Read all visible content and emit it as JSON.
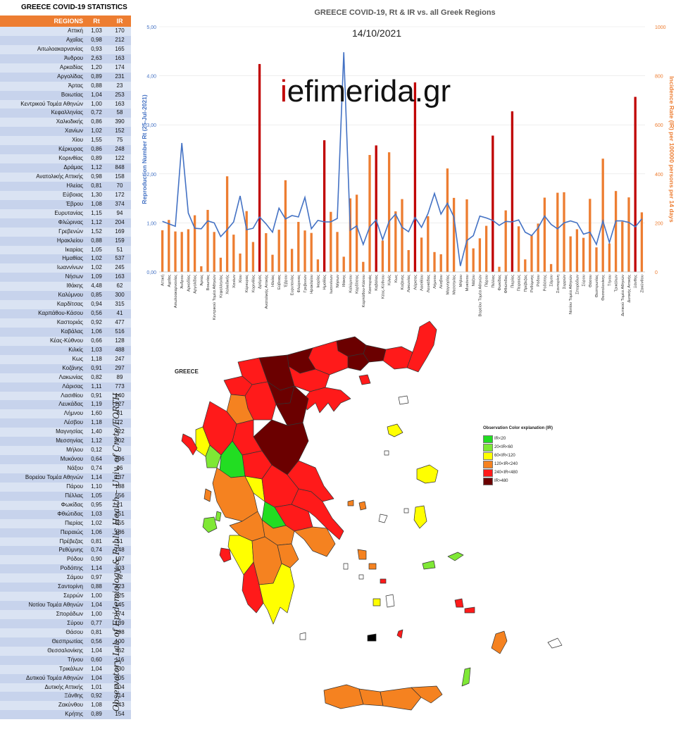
{
  "stats_table": {
    "title": "GREECE COVID-19 STATISTICS",
    "headers": [
      "REGIONS",
      "Rt",
      "IR"
    ],
    "rows": [
      [
        "Αττική",
        "1,03",
        "170"
      ],
      [
        "Αχαΐας",
        "0,98",
        "212"
      ],
      [
        "Αιτωλοακαρνανίας",
        "0,93",
        "165"
      ],
      [
        "Άνδρου",
        "2,63",
        "163"
      ],
      [
        "Αρκαδίας",
        "1,20",
        "174"
      ],
      [
        "Αργολίδας",
        "0,89",
        "231"
      ],
      [
        "Άρτας",
        "0,88",
        "23"
      ],
      [
        "Βοιωτίας",
        "1,04",
        "253"
      ],
      [
        "Κεντρικού Τομέα Αθηνών",
        "1,00",
        "163"
      ],
      [
        "Κεφαλληνίας",
        "0,72",
        "58"
      ],
      [
        "Χαλκιδικής",
        "0,86",
        "390"
      ],
      [
        "Χανίων",
        "1,02",
        "152"
      ],
      [
        "Χίου",
        "1,55",
        "75"
      ],
      [
        "Κέρκυρας",
        "0,86",
        "248"
      ],
      [
        "Κορινθίας",
        "0,89",
        "122"
      ],
      [
        "Δράμας",
        "1,12",
        "848"
      ],
      [
        "Ανατολικής Αττικής",
        "0,98",
        "158"
      ],
      [
        "Ηλείας",
        "0,81",
        "70"
      ],
      [
        "Εύβοιας",
        "1,30",
        "172"
      ],
      [
        "Έβρου",
        "1,08",
        "374"
      ],
      [
        "Ευρυτανίας",
        "1,15",
        "94"
      ],
      [
        "Φλώρινας",
        "1,12",
        "204"
      ],
      [
        "Γρεβενών",
        "1,52",
        "169"
      ],
      [
        "Ηρακλείου",
        "0,88",
        "159"
      ],
      [
        "Ικαρίας",
        "1,05",
        "51"
      ],
      [
        "Ημαθίας",
        "1,02",
        "537"
      ],
      [
        "Ιωαννίνων",
        "1,02",
        "245"
      ],
      [
        "Νήσων",
        "1,09",
        "163"
      ],
      [
        "Ιθάκης",
        "4,48",
        "62"
      ],
      [
        "Καλύμνου",
        "0,85",
        "300"
      ],
      [
        "Καρδίτσας",
        "0,94",
        "315"
      ],
      [
        "Καρπάθου-Κάσου",
        "0,56",
        "41"
      ],
      [
        "Καστοριάς",
        "0,92",
        "477"
      ],
      [
        "Καβάλας",
        "1,06",
        "516"
      ],
      [
        "Κέας-Κύθνου",
        "0,66",
        "128"
      ],
      [
        "Κιλκίς",
        "1,03",
        "488"
      ],
      [
        "Κως",
        "1,18",
        "247"
      ],
      [
        "Κοζάνης",
        "0,91",
        "297"
      ],
      [
        "Λακωνίας",
        "0,82",
        "89"
      ],
      [
        "Λάρισας",
        "1,11",
        "773"
      ],
      [
        "Λασιθίου",
        "0,91",
        "140"
      ],
      [
        "Λευκάδας",
        "1,19",
        "227"
      ],
      [
        "Λήμνου",
        "1,60",
        "81"
      ],
      [
        "Λέσβου",
        "1,18",
        "72"
      ],
      [
        "Μαγνησίας",
        "1,40",
        "422"
      ],
      [
        "Μεσσηνίας",
        "1,12",
        "302"
      ],
      [
        "Μήλου",
        "0,12",
        "0"
      ],
      [
        "Μυκόνου",
        "0,64",
        "296"
      ],
      [
        "Νάξου",
        "0,74",
        "96"
      ],
      [
        "Βορείου Τομέα Αθηνών",
        "1,14",
        "137"
      ],
      [
        "Πάρου",
        "1,10",
        "188"
      ],
      [
        "Πέλλας",
        "1,05",
        "556"
      ],
      [
        "Φωκίδας",
        "0,95",
        "21"
      ],
      [
        "Φθιώτιδας",
        "1,03",
        "251"
      ],
      [
        "Πιερίας",
        "1,02",
        "655"
      ],
      [
        "Πειραιώς",
        "1,06",
        "186"
      ],
      [
        "Πρέβεζας",
        "0,81",
        "51"
      ],
      [
        "Ρεθύμνης",
        "0,74",
        "148"
      ],
      [
        "Ρόδου",
        "0,90",
        "197"
      ],
      [
        "Ροδόπης",
        "1,14",
        "303"
      ],
      [
        "Σάμου",
        "0,97",
        "32"
      ],
      [
        "Σαντορίνη",
        "0,88",
        "323"
      ],
      [
        "Σερρών",
        "1,00",
        "325"
      ],
      [
        "Νοτίου Τομέα Αθηνών",
        "1,04",
        "145"
      ],
      [
        "Σποράδων",
        "1,00",
        "174"
      ],
      [
        "Σύρου",
        "0,77",
        "139"
      ],
      [
        "Θάσου",
        "0,81",
        "298"
      ],
      [
        "Θεσπρωτίας",
        "0,56",
        "100"
      ],
      [
        "Θεσσαλονίκης",
        "1,04",
        "462"
      ],
      [
        "Τήνου",
        "0,60",
        "116"
      ],
      [
        "Τρικάλων",
        "1,04",
        "330"
      ],
      [
        "Δυτικού Τομέα Αθηνών",
        "1,04",
        "205"
      ],
      [
        "Δυτικής Αττικής",
        "1,01",
        "304"
      ],
      [
        "Ξάνθης",
        "0,92",
        "714"
      ],
      [
        "Ζακύνθου",
        "1,08",
        "243"
      ],
      [
        "Κρήτης",
        "0,89",
        "154"
      ]
    ]
  },
  "chart_data": {
    "type": "bar",
    "title": "GREECE COVID-19, Rt & IR vs. all Greek Regions",
    "subtitle": "14/10/2021",
    "ylabel_left": "Reproduction Number Rt (25-Jul-2021)",
    "ylabel_right": "Incidence Rate (IR) per 100000 persons per 14 days",
    "y_left_ticks": [
      "0,00",
      "1,00",
      "2,00",
      "3,00",
      "4,00",
      "5,00"
    ],
    "y_right_ticks": [
      "0",
      "200",
      "400",
      "600",
      "800",
      "1000"
    ],
    "ylim_left": [
      0,
      5
    ],
    "ylim_right": [
      0,
      1000
    ],
    "categories": [
      "Αττική",
      "Αχαΐας",
      "Αιτωλοακαρνανίας",
      "Άνδρου",
      "Αρκαδίας",
      "Αργολίδας",
      "Άρτας",
      "Βοιωτίας",
      "Κεντρικού Τομέα Αθηνών",
      "Κεφαλληνίας",
      "Χαλκιδικής",
      "Χανίων",
      "Χίου",
      "Κέρκυρας",
      "Κορινθίας",
      "Δράμας",
      "Ανατολικής Αττικής",
      "Ηλείας",
      "Εύβοιας",
      "Έβρου",
      "Ευρυτανίας",
      "Φλώρινας",
      "Γρεβενών",
      "Ηρακλείου",
      "Ικαρίας",
      "Ημαθίας",
      "Ιωαννίνων",
      "Νήσων",
      "Ιθάκης",
      "Καλύμνου",
      "Καρδίτσας",
      "Καρπάθου-Κάσου",
      "Καστοριάς",
      "Καβάλας",
      "Κέας-Κύθνου",
      "Κιλκίς",
      "Κως",
      "Κοζάνης",
      "Λακωνίας",
      "Λάρισας",
      "Λασιθίου",
      "Λευκάδας",
      "Λήμνου",
      "Λέσβου",
      "Μαγνησίας",
      "Μεσσηνίας",
      "Μήλου",
      "Μυκόνου",
      "Νάξου",
      "Βορείου Τομέα Αθηνών",
      "Πάρου",
      "Πέλλας",
      "Φωκίδας",
      "Φθιώτιδας",
      "Πιερίας",
      "Πειραιώς",
      "Πρέβεζας",
      "Ρεθύμνης",
      "Ρόδου",
      "Ροδόπης",
      "Σάμου",
      "Σαντορίνη",
      "Σερρών",
      "Νοτίου Τομέα Αθηνών",
      "Σποράδων",
      "Σύρου",
      "Θάσου",
      "Θεσπρωτίας",
      "Θεσσαλονίκης",
      "Τήνου",
      "Τρικάλων",
      "Δυτικού Τομέα Αθηνών",
      "Δυτικής Αττικής",
      "Ξάνθης",
      "Ζακύνθου"
    ],
    "series": [
      {
        "name": "IR",
        "kind": "bar",
        "axis": "right",
        "values": [
          170,
          212,
          165,
          163,
          174,
          231,
          23,
          253,
          163,
          58,
          390,
          152,
          75,
          248,
          122,
          848,
          158,
          70,
          172,
          374,
          94,
          204,
          169,
          159,
          51,
          537,
          245,
          163,
          62,
          300,
          315,
          41,
          477,
          516,
          128,
          488,
          247,
          297,
          89,
          773,
          140,
          227,
          81,
          72,
          422,
          302,
          0,
          296,
          96,
          137,
          188,
          556,
          21,
          251,
          655,
          186,
          51,
          148,
          197,
          303,
          32,
          323,
          325,
          145,
          174,
          139,
          298,
          100,
          462,
          116,
          330,
          205,
          304,
          714,
          243
        ]
      },
      {
        "name": "Rt",
        "kind": "line",
        "axis": "left",
        "values": [
          1.03,
          0.98,
          0.93,
          2.63,
          1.2,
          0.89,
          0.88,
          1.04,
          1.0,
          0.72,
          0.86,
          1.02,
          1.55,
          0.86,
          0.89,
          1.12,
          0.98,
          0.81,
          1.3,
          1.08,
          1.15,
          1.12,
          1.52,
          0.88,
          1.05,
          1.02,
          1.02,
          1.09,
          4.48,
          0.85,
          0.94,
          0.56,
          0.92,
          1.06,
          0.66,
          1.03,
          1.18,
          0.91,
          0.82,
          1.11,
          0.91,
          1.19,
          1.6,
          1.18,
          1.4,
          1.12,
          0.12,
          0.64,
          0.74,
          1.14,
          1.1,
          1.05,
          0.95,
          1.03,
          1.02,
          1.06,
          0.81,
          0.74,
          0.9,
          1.14,
          0.97,
          0.88,
          1.0,
          1.04,
          1.0,
          0.77,
          0.81,
          0.56,
          1.04,
          0.6,
          1.04,
          1.04,
          1.01,
          0.92,
          1.08
        ]
      }
    ],
    "colors": {
      "bar_normal": "#ed7d31",
      "bar_high": "#c00000",
      "line": "#4472c4",
      "left_axis": "#4472c4",
      "right_axis": "#ed7d31"
    }
  },
  "watermark": {
    "prefix": "i",
    "rest": "efimerida.gr"
  },
  "map": {
    "title": "GREECE",
    "legend_title": "Observation Color explanation (IR)",
    "legend": [
      {
        "label": "IR<20",
        "color": "#22dd22"
      },
      {
        "label": "20<IR<60",
        "color": "#7fe835"
      },
      {
        "label": "60<IR<120",
        "color": "#ffff00"
      },
      {
        "label": "120<IR<240",
        "color": "#f58220"
      },
      {
        "label": "240<IR<480",
        "color": "#ff1a1a"
      },
      {
        "label": "IR>480",
        "color": "#6b0000"
      }
    ]
  },
  "signature": "Observatory Lab of Epidemiology & Public Health – Univ. of Crete/FORTH"
}
